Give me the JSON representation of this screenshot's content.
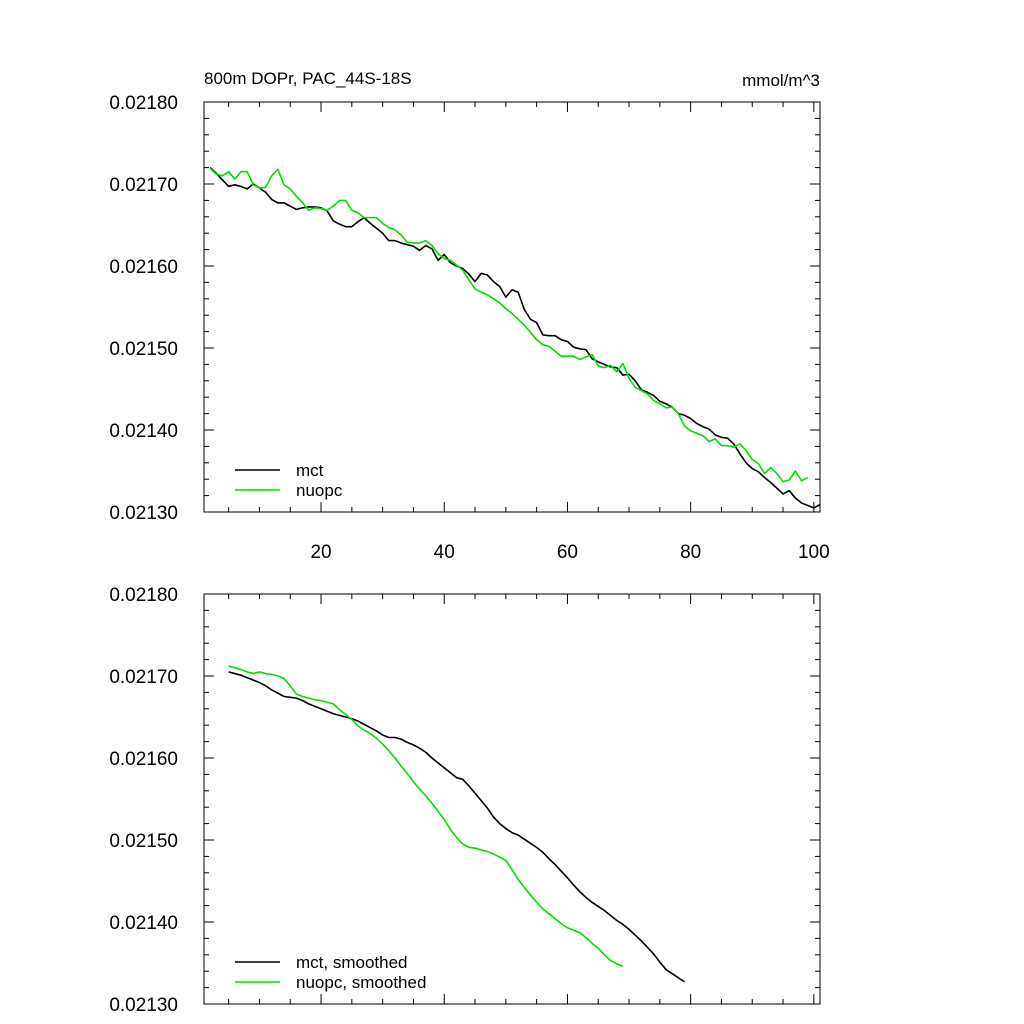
{
  "colors": {
    "mct": "#000000",
    "nuopc": "#00dd00",
    "axis": "#000000",
    "background": "#ffffff"
  },
  "chart_data": [
    {
      "type": "line",
      "title": "800m DOPr, PAC_44S-18S",
      "units": "mmol/m^3",
      "xlim": [
        1,
        101
      ],
      "ylim": [
        0.0213,
        0.0218
      ],
      "xticks": [
        20,
        40,
        60,
        80,
        100
      ],
      "xtick_labels": [
        "20",
        "40",
        "60",
        "80",
        "100"
      ],
      "yticks": [
        0.0213,
        0.0214,
        0.0215,
        0.0216,
        0.0217,
        0.0218
      ],
      "ytick_labels": [
        "0.02130",
        "0.02140",
        "0.02150",
        "0.02160",
        "0.02170",
        "0.02180"
      ],
      "grid": false,
      "legend": "bottom-left",
      "x_start": 2,
      "series": [
        {
          "name": "mct",
          "color": "#000000",
          "values": [
            0.02172,
            0.021713,
            0.021705,
            0.021697,
            0.021699,
            0.021697,
            0.021694,
            0.0217,
            0.021695,
            0.02169,
            0.021681,
            0.021677,
            0.021677,
            0.021673,
            0.021669,
            0.021671,
            0.021672,
            0.021672,
            0.021671,
            0.021667,
            0.021655,
            0.021651,
            0.021648,
            0.021648,
            0.021654,
            0.021659,
            0.021652,
            0.021646,
            0.02164,
            0.021631,
            0.021631,
            0.021628,
            0.021626,
            0.021624,
            0.021619,
            0.021625,
            0.021621,
            0.021607,
            0.021614,
            0.021604,
            0.0216,
            0.021597,
            0.02159,
            0.021581,
            0.021591,
            0.021589,
            0.021581,
            0.021575,
            0.021562,
            0.021571,
            0.021568,
            0.021547,
            0.021535,
            0.021531,
            0.021516,
            0.021515,
            0.021515,
            0.02151,
            0.021508,
            0.021501,
            0.021499,
            0.021498,
            0.021487,
            0.021483,
            0.02148,
            0.021477,
            0.021476,
            0.021467,
            0.021468,
            0.02146,
            0.021449,
            0.021446,
            0.021442,
            0.021435,
            0.021432,
            0.021428,
            0.02142,
            0.021418,
            0.021414,
            0.021408,
            0.021404,
            0.021401,
            0.021394,
            0.021391,
            0.02139,
            0.021383,
            0.021371,
            0.02136,
            0.021353,
            0.021349,
            0.021342,
            0.021336,
            0.021329,
            0.021322,
            0.021326,
            0.021317,
            0.021311,
            0.021308,
            0.021305,
            0.021309
          ]
        },
        {
          "name": "nuopc",
          "color": "#00dd00",
          "values": [
            0.021719,
            0.021712,
            0.02171,
            0.021715,
            0.021706,
            0.021715,
            0.021715,
            0.021699,
            0.021695,
            0.021696,
            0.02171,
            0.021718,
            0.021699,
            0.021694,
            0.021685,
            0.021677,
            0.021668,
            0.021671,
            0.02167,
            0.021668,
            0.021673,
            0.02168,
            0.02168,
            0.021668,
            0.021665,
            0.021659,
            0.021659,
            0.021659,
            0.021652,
            0.021647,
            0.021644,
            0.021638,
            0.021629,
            0.021628,
            0.021628,
            0.021631,
            0.021625,
            0.021615,
            0.021609,
            0.021607,
            0.021601,
            0.021595,
            0.021583,
            0.021572,
            0.021568,
            0.021565,
            0.02156,
            0.021555,
            0.021548,
            0.021542,
            0.021535,
            0.021528,
            0.021519,
            0.02151,
            0.021504,
            0.021502,
            0.021496,
            0.02149,
            0.02149,
            0.02149,
            0.021486,
            0.021489,
            0.021492,
            0.021478,
            0.021476,
            0.021479,
            0.021471,
            0.021481,
            0.021463,
            0.021452,
            0.021448,
            0.021444,
            0.021436,
            0.021432,
            0.021427,
            0.021428,
            0.02142,
            0.021405,
            0.021399,
            0.021396,
            0.021393,
            0.021386,
            0.021389,
            0.021381,
            0.021381,
            0.021379,
            0.021383,
            0.021375,
            0.021364,
            0.021359,
            0.021347,
            0.021354,
            0.021347,
            0.021337,
            0.021339,
            0.02135,
            0.021338,
            0.021342
          ]
        }
      ]
    },
    {
      "type": "line",
      "xlim": [
        1,
        101
      ],
      "ylim": [
        0.0213,
        0.0218
      ],
      "xticks": [
        20,
        40,
        60,
        80,
        100
      ],
      "yticks": [
        0.0213,
        0.0214,
        0.0215,
        0.0216,
        0.0217,
        0.0218
      ],
      "ytick_labels": [
        "0.02130",
        "0.02140",
        "0.02150",
        "0.02160",
        "0.02170",
        "0.02180"
      ],
      "grid": false,
      "legend": "bottom-left",
      "x_start": 5,
      "series": [
        {
          "name": "mct, smoothed",
          "color": "#000000",
          "values": [
            0.021705,
            0.021703,
            0.021701,
            0.021698,
            0.021695,
            0.021692,
            0.021688,
            0.021683,
            0.021679,
            0.021675,
            0.021674,
            0.021673,
            0.02167,
            0.021666,
            0.021663,
            0.02166,
            0.021657,
            0.021654,
            0.021652,
            0.02165,
            0.021648,
            0.021645,
            0.021641,
            0.021637,
            0.021633,
            0.021628,
            0.021625,
            0.021625,
            0.021623,
            0.021619,
            0.021616,
            0.021612,
            0.021607,
            0.0216,
            0.021594,
            0.021588,
            0.021582,
            0.021576,
            0.021574,
            0.021566,
            0.021557,
            0.021548,
            0.021539,
            0.021528,
            0.02152,
            0.021514,
            0.021509,
            0.021506,
            0.021501,
            0.021496,
            0.021491,
            0.021485,
            0.021477,
            0.02147,
            0.021462,
            0.021454,
            0.021445,
            0.021437,
            0.02143,
            0.021424,
            0.021419,
            0.021414,
            0.021408,
            0.021402,
            0.021397,
            0.021391,
            0.021384,
            0.021377,
            0.021369,
            0.021361,
            0.021351,
            0.021342,
            0.021337,
            0.021332,
            0.021327
          ]
        },
        {
          "name": "nuopc, smoothed",
          "color": "#00dd00",
          "values": [
            0.021712,
            0.02171,
            0.021708,
            0.021705,
            0.021703,
            0.021705,
            0.021703,
            0.021702,
            0.0217,
            0.021697,
            0.021688,
            0.021678,
            0.021675,
            0.021673,
            0.021671,
            0.02167,
            0.021668,
            0.021666,
            0.021659,
            0.021653,
            0.021647,
            0.021639,
            0.021634,
            0.02163,
            0.021624,
            0.021617,
            0.021609,
            0.0216,
            0.02159,
            0.021581,
            0.021571,
            0.021562,
            0.021554,
            0.021545,
            0.021535,
            0.021525,
            0.021513,
            0.021503,
            0.021495,
            0.021491,
            0.02149,
            0.021488,
            0.021486,
            0.021483,
            0.021479,
            0.021475,
            0.021464,
            0.021452,
            0.021442,
            0.021433,
            0.021424,
            0.021416,
            0.02141,
            0.021404,
            0.021398,
            0.021393,
            0.02139,
            0.021387,
            0.021381,
            0.021374,
            0.021368,
            0.02136,
            0.021353,
            0.021349,
            0.021346
          ]
        }
      ]
    }
  ]
}
